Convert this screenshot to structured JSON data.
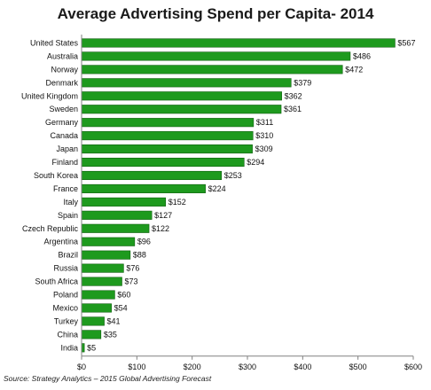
{
  "chart_data": {
    "type": "bar",
    "orientation": "horizontal",
    "title": "Average Advertising Spend per Capita- 2014",
    "categories": [
      "United States",
      "Australia",
      "Norway",
      "Denmark",
      "United Kingdom",
      "Sweden",
      "Germany",
      "Canada",
      "Japan",
      "Finland",
      "South Korea",
      "France",
      "Italy",
      "Spain",
      "Czech Republic",
      "Argentina",
      "Brazil",
      "Russia",
      "South Africa",
      "Poland",
      "Mexico",
      "Turkey",
      "China",
      "India"
    ],
    "values": [
      567,
      486,
      472,
      379,
      362,
      361,
      311,
      310,
      309,
      294,
      253,
      224,
      152,
      127,
      122,
      96,
      88,
      76,
      73,
      60,
      54,
      41,
      35,
      5
    ],
    "value_labels": [
      "$567",
      "$486",
      "$472",
      "$379",
      "$362",
      "$361",
      "$311",
      "$310",
      "$309",
      "$294",
      "$253",
      "$224",
      "$152",
      "$127",
      "$122",
      "$96",
      "$88",
      "$76",
      "$73",
      "$60",
      "$54",
      "$41",
      "$35",
      "$5"
    ],
    "xlim": [
      0,
      600
    ],
    "xticks": [
      0,
      100,
      200,
      300,
      400,
      500,
      600
    ],
    "xtick_labels": [
      "$0",
      "$100",
      "$200",
      "$300",
      "$400",
      "$500",
      "$600"
    ],
    "grid": false,
    "bar_color": "#1e9a1e",
    "bar_edge_color": "#0f5e0f",
    "source": "Source: Strategy Analytics – 2015 Global Advertising Forecast"
  }
}
